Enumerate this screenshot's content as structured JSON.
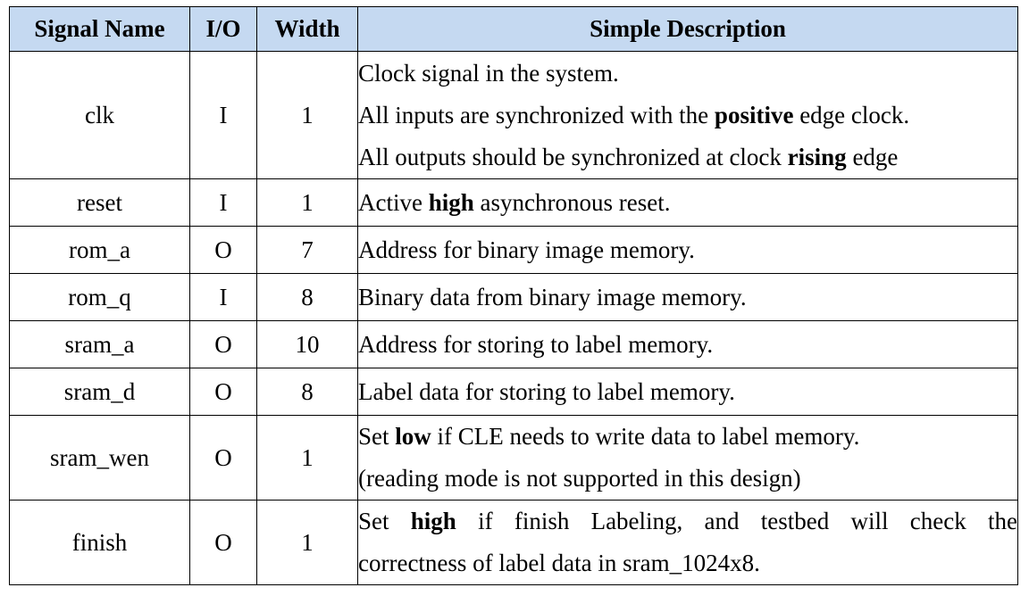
{
  "headers": {
    "signal_name": "Signal Name",
    "io": "I/O",
    "width": "Width",
    "description": "Simple Description"
  },
  "rows": [
    {
      "name": "clk",
      "io": "I",
      "width": "1",
      "desc": [
        {
          "a": "Clock signal in the system.",
          "b": "",
          "c": ""
        },
        {
          "a": "All inputs are synchronized with the ",
          "b": "positive",
          "c": " edge clock."
        },
        {
          "a": "All outputs should be synchronized at clock ",
          "b": "rising",
          "c": " edge"
        }
      ]
    },
    {
      "name": "reset",
      "io": "I",
      "width": "1",
      "desc": [
        {
          "a": "Active ",
          "b": "high",
          "c": " asynchronous reset."
        }
      ]
    },
    {
      "name": "rom_a",
      "io": "O",
      "width": "7",
      "desc": [
        {
          "a": "Address for binary image memory.",
          "b": "",
          "c": ""
        }
      ]
    },
    {
      "name": "rom_q",
      "io": "I",
      "width": "8",
      "desc": [
        {
          "a": "Binary data from binary image memory.",
          "b": "",
          "c": ""
        }
      ]
    },
    {
      "name": "sram_a",
      "io": "O",
      "width": "10",
      "desc": [
        {
          "a": "Address for storing to label memory.",
          "b": "",
          "c": ""
        }
      ]
    },
    {
      "name": "sram_d",
      "io": "O",
      "width": "8",
      "desc": [
        {
          "a": "Label data for storing to label memory.",
          "b": "",
          "c": ""
        }
      ]
    },
    {
      "name": "sram_wen",
      "io": "O",
      "width": "1",
      "desc": [
        {
          "a": "Set ",
          "b": "low",
          "c": " if CLE needs to write data to label memory."
        },
        {
          "a": "(reading mode is not supported in this design)",
          "b": "",
          "c": ""
        }
      ]
    },
    {
      "name": "finish",
      "io": "O",
      "width": "1",
      "desc": [
        {
          "a": "Set ",
          "b": "high",
          "c": " if finish Labeling, and testbed will check the"
        },
        {
          "a": "correctness of label data in sram_1024x8.",
          "b": "",
          "c": ""
        }
      ]
    }
  ]
}
